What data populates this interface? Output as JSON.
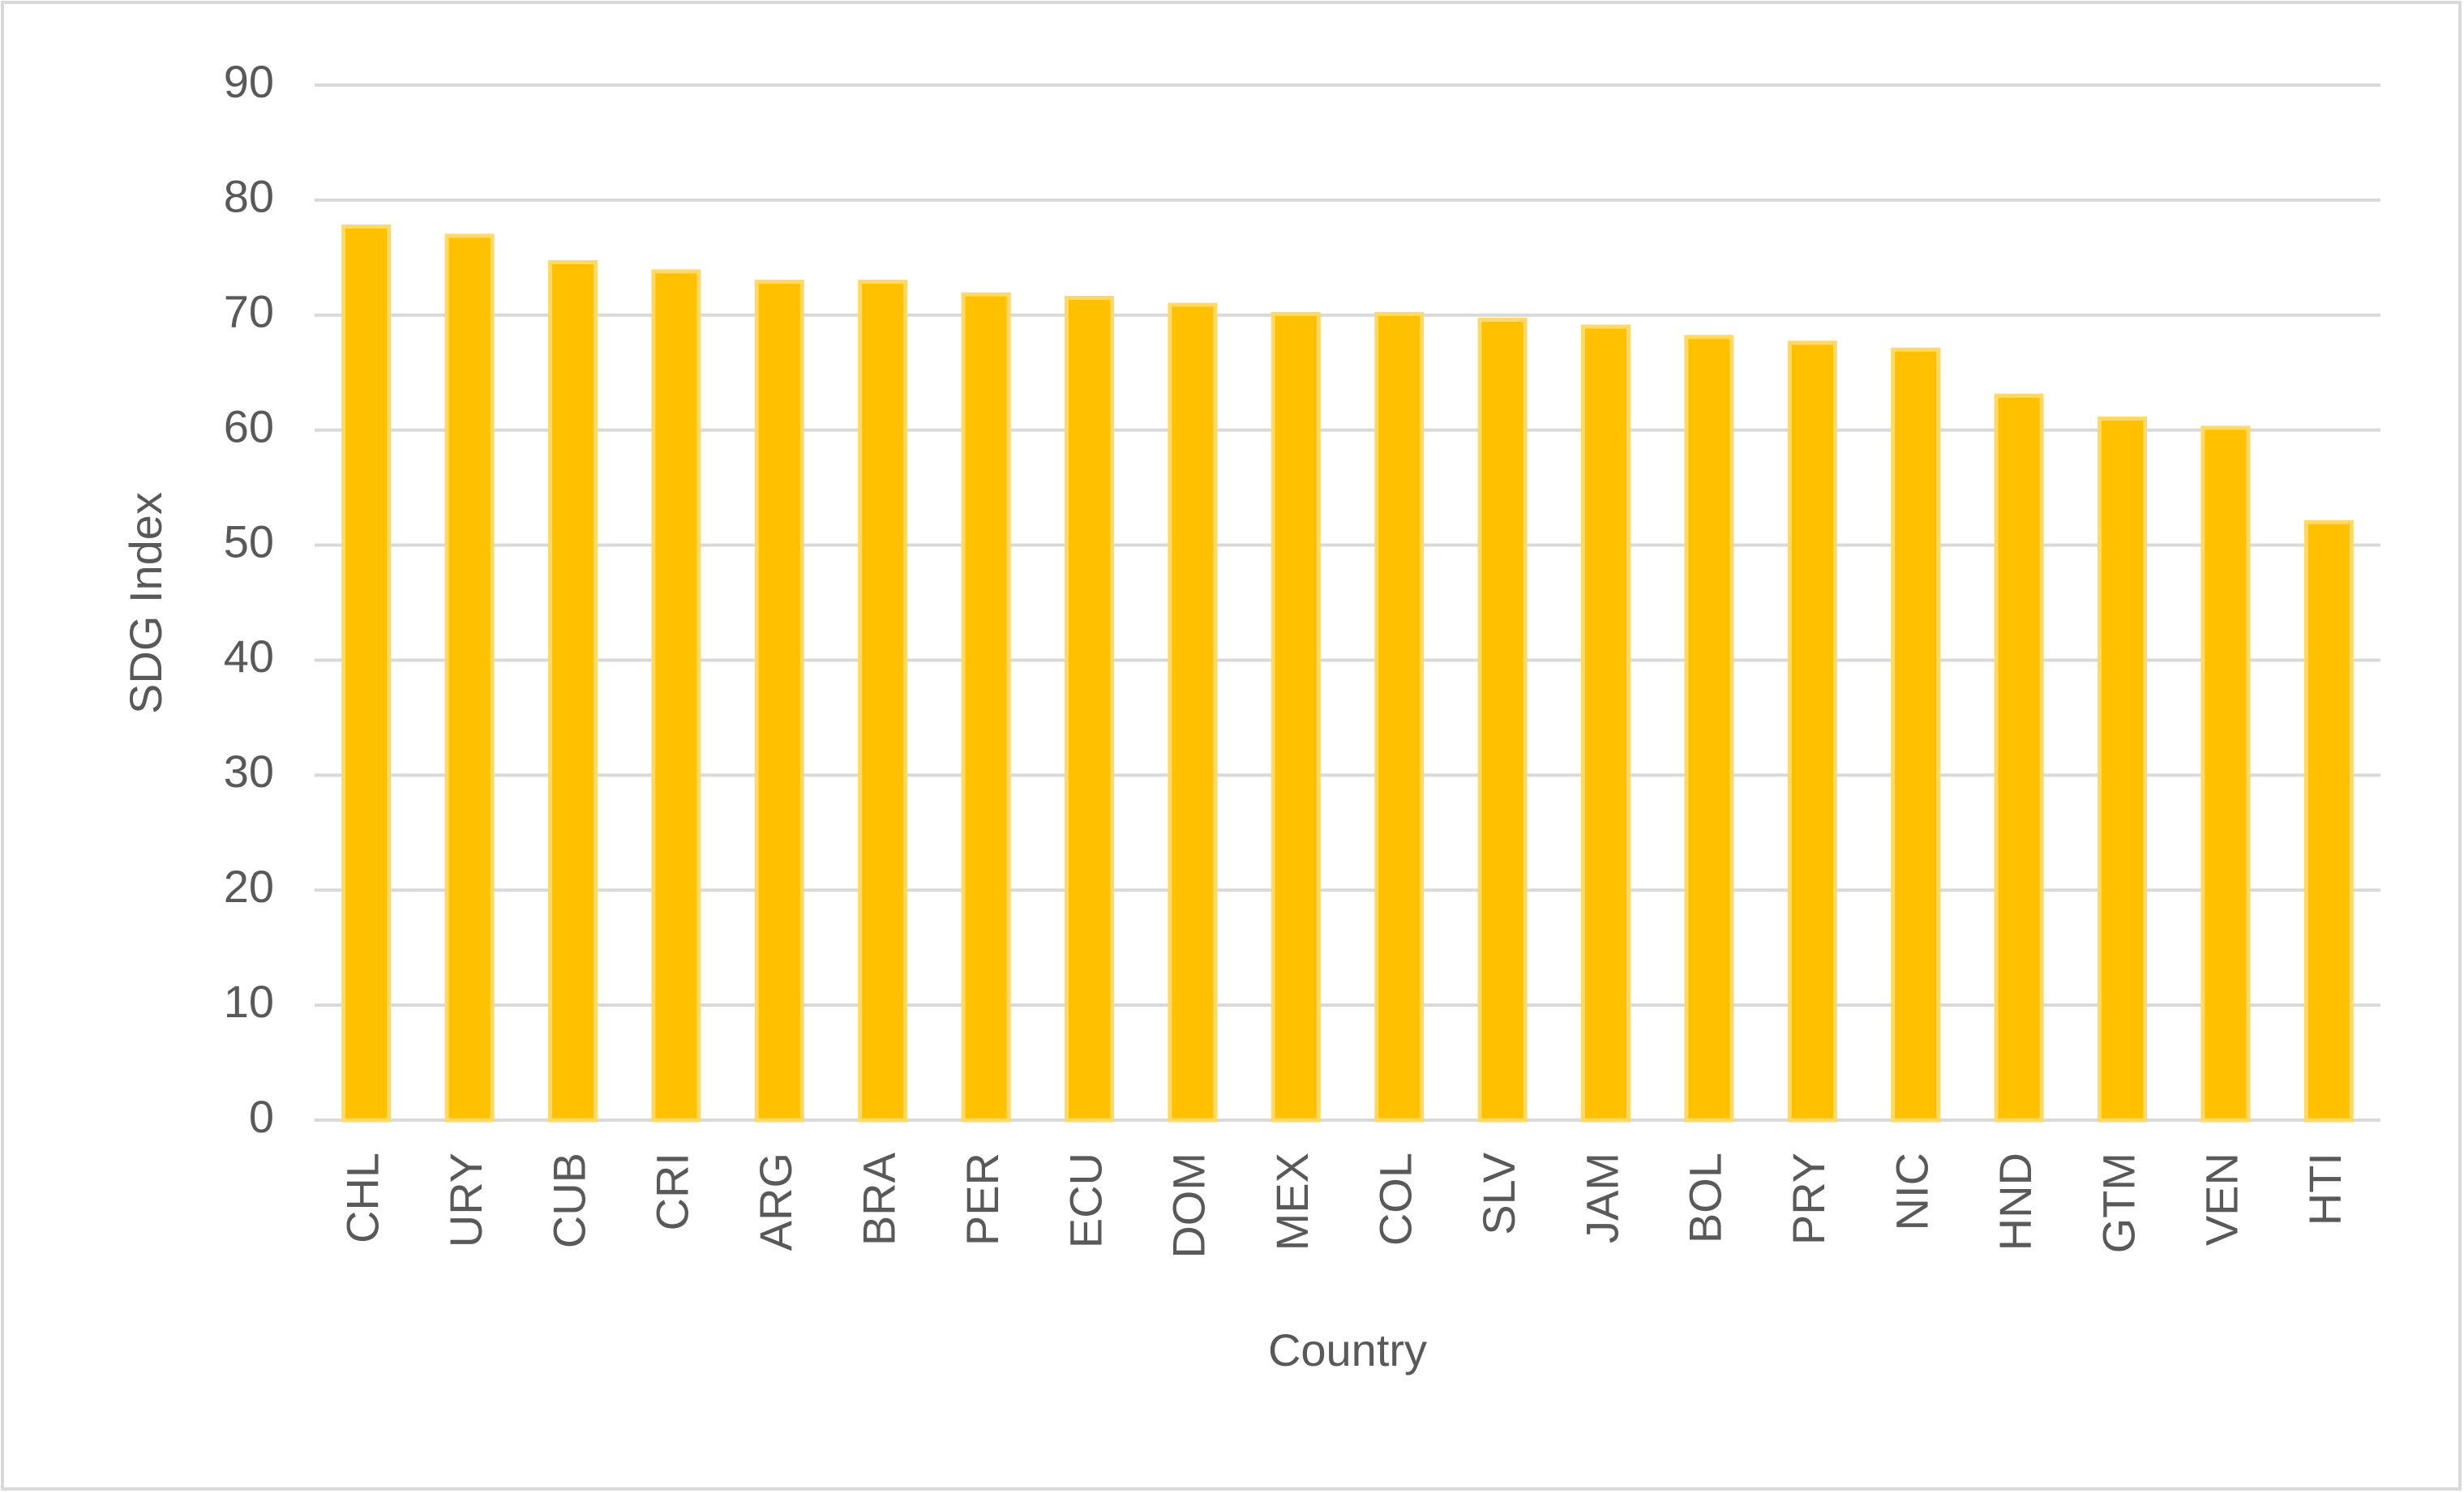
{
  "chart_data": {
    "type": "bar",
    "x_label": "Country",
    "y_label": "SDG Index",
    "categories": [
      "CHL",
      "URY",
      "CUB",
      "CRI",
      "ARG",
      "BRA",
      "PER",
      "ECU",
      "DOM",
      "MEX",
      "COL",
      "SLV",
      "JAM",
      "BOL",
      "PRY",
      "NIC",
      "HND",
      "GTM",
      "VEN",
      "HTI"
    ],
    "values": [
      77.7,
      76.9,
      74.6,
      73.8,
      72.9,
      72.9,
      71.8,
      71.5,
      70.9,
      70.1,
      70.1,
      69.6,
      69.0,
      68.1,
      67.6,
      67.0,
      63.0,
      61.0,
      60.2,
      52.0
    ],
    "color": "#FFC000",
    "ylim": [
      0,
      90
    ],
    "yticks": [
      0,
      10,
      20,
      30,
      40,
      50,
      60,
      70,
      80,
      90
    ],
    "grid": true
  }
}
